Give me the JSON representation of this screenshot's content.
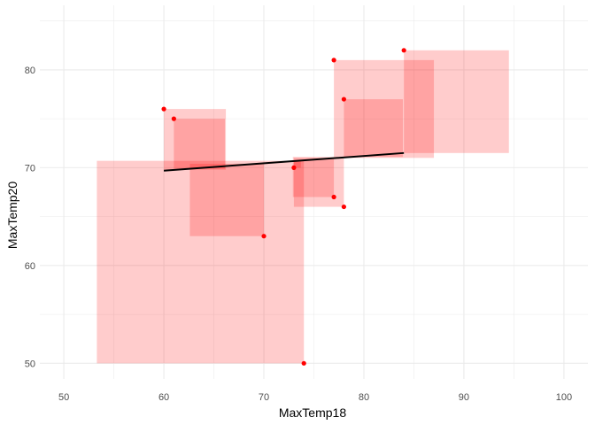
{
  "chart_data": {
    "type": "scatter",
    "title": "",
    "xlabel": "MaxTemp18",
    "ylabel": "MaxTemp20",
    "xlim": [
      47.6,
      102.4
    ],
    "ylim": [
      48.4,
      86.6
    ],
    "x_ticks": [
      50,
      60,
      70,
      80,
      90,
      100
    ],
    "y_ticks": [
      50,
      60,
      70,
      80
    ],
    "grid": true,
    "points": [
      {
        "x": 60,
        "y": 76
      },
      {
        "x": 61,
        "y": 75
      },
      {
        "x": 70,
        "y": 63
      },
      {
        "x": 73,
        "y": 70
      },
      {
        "x": 74,
        "y": 50
      },
      {
        "x": 77,
        "y": 81
      },
      {
        "x": 77,
        "y": 67
      },
      {
        "x": 78,
        "y": 77
      },
      {
        "x": 78,
        "y": 66
      },
      {
        "x": 84,
        "y": 82
      }
    ],
    "residual_squares": [
      {
        "x0": 60,
        "y0": 69.8,
        "x1": 66.2,
        "y1": 76
      },
      {
        "x0": 61,
        "y0": 69.9,
        "x1": 66.1,
        "y1": 75
      },
      {
        "x0": 62.6,
        "y0": 63,
        "x1": 70,
        "y1": 70.4
      },
      {
        "x0": 73,
        "y0": 70,
        "x1": 73.7,
        "y1": 70.7
      },
      {
        "x0": 53.3,
        "y0": 50,
        "x1": 74,
        "y1": 70.7
      },
      {
        "x0": 77,
        "y0": 71,
        "x1": 87,
        "y1": 81
      },
      {
        "x0": 72.9,
        "y0": 67,
        "x1": 77,
        "y1": 71.1
      },
      {
        "x0": 78,
        "y0": 71.1,
        "x1": 83.9,
        "y1": 77
      },
      {
        "x0": 73,
        "y0": 66,
        "x1": 78,
        "y1": 71
      },
      {
        "x0": 84,
        "y0": 71.5,
        "x1": 94.5,
        "y1": 82
      }
    ],
    "regression_line": {
      "x": [
        60,
        84
      ],
      "y": [
        69.7,
        71.5
      ]
    },
    "colors": {
      "point": "#ff0000",
      "square": "#ff0000",
      "square_opacity": 0.2,
      "line": "#000000",
      "grid": "#ebebeb"
    }
  }
}
